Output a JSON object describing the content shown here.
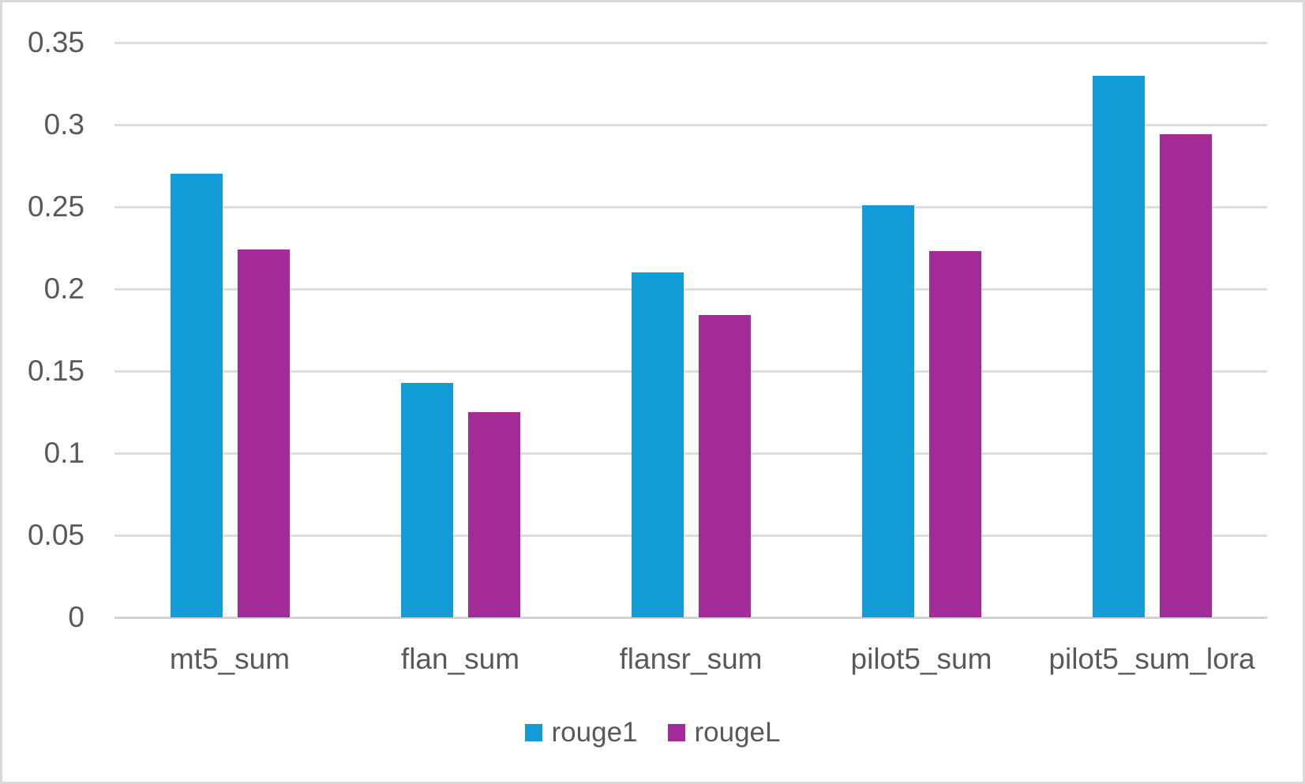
{
  "chart_data": {
    "type": "bar",
    "title": "",
    "categories": [
      "mt5_sum",
      "flan_sum",
      "flansr_sum",
      "pilot5_sum",
      "pilot5_sum_lora"
    ],
    "series": [
      {
        "name": "rouge1",
        "color": "#139cd6",
        "values": [
          0.27,
          0.143,
          0.21,
          0.251,
          0.33
        ]
      },
      {
        "name": "rougeL",
        "color": "#a32c99",
        "values": [
          0.224,
          0.125,
          0.184,
          0.223,
          0.294
        ]
      }
    ],
    "ylim": [
      0,
      0.35
    ],
    "ytick_step": 0.05,
    "ytick_labels": [
      "0",
      "0.05",
      "0.1",
      "0.15",
      "0.2",
      "0.25",
      "0.3",
      "0.35"
    ],
    "grid": "horizontal",
    "legend_position": "bottom-center"
  },
  "colors": {
    "background": "#ffffff",
    "frame_border": "#d9d9d9",
    "gridline": "#dddddd",
    "axis_line": "#d3d3d3",
    "label_text": "#595959"
  }
}
